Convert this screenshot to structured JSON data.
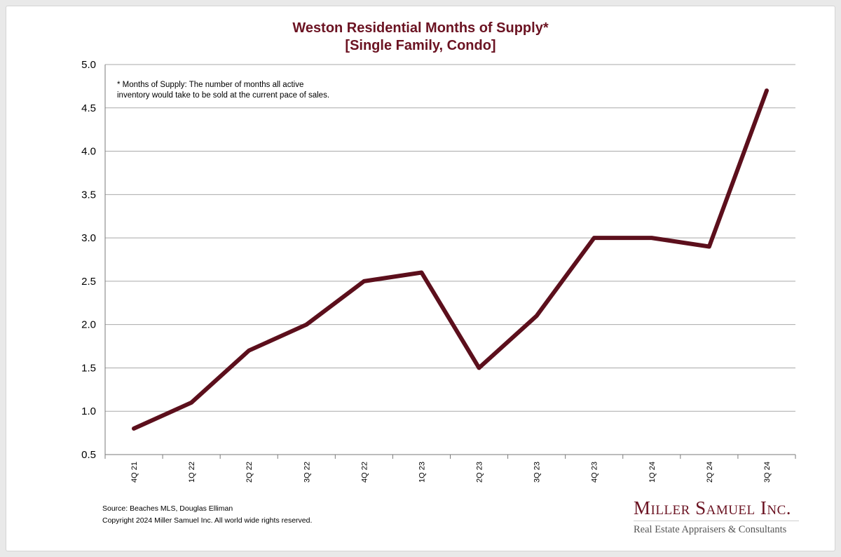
{
  "chart_data": {
    "type": "line",
    "title": "Weston Residential Months of Supply*",
    "subtitle": "[Single Family, Condo]",
    "categories": [
      "4Q 21",
      "1Q 22",
      "2Q 22",
      "3Q 22",
      "4Q 22",
      "1Q 23",
      "2Q 23",
      "3Q 23",
      "4Q 23",
      "1Q 24",
      "2Q 24",
      "3Q 24"
    ],
    "series": [
      {
        "name": "Months of Supply",
        "values": [
          0.8,
          1.1,
          1.7,
          2.0,
          2.5,
          2.6,
          1.5,
          2.1,
          3.0,
          3.0,
          2.9,
          4.7
        ]
      }
    ],
    "yticks": [
      "0.5",
      "1.0",
      "1.5",
      "2.0",
      "2.5",
      "3.0",
      "3.5",
      "4.0",
      "4.5",
      "5.0"
    ],
    "ylim": [
      0.5,
      5.0
    ],
    "grid": true,
    "line_color": "#5c0f1c",
    "annotation_line1": "* Months of Supply: The number of months all active",
    "annotation_line2": "inventory would take to be sold at the current pace of sales."
  },
  "footer": {
    "source": "Source: Beaches MLS, Douglas Elliman",
    "copyright": "Copyright 2024 Miller Samuel Inc.  All world wide rights reserved."
  },
  "brand": {
    "name": "Miller Samuel Inc.",
    "tagline": "Real Estate Appraisers & Consultants",
    "color": "#6b1322"
  }
}
